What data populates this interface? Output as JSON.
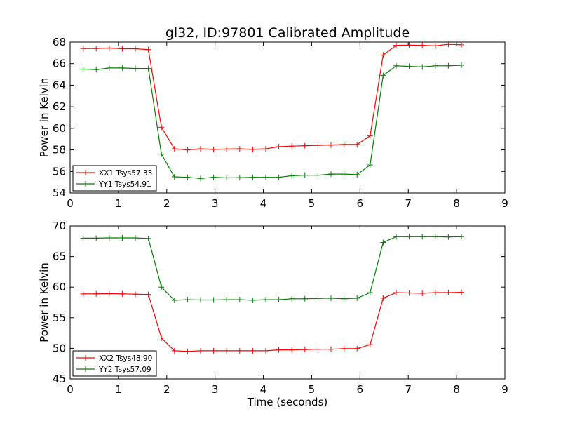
{
  "figure": {
    "title": "gl32, ID:97801 Calibrated Amplitude",
    "xlabel": "Time (seconds)"
  },
  "chart_data": [
    {
      "type": "line",
      "title": "gl32, ID:97801 Calibrated Amplitude",
      "xlabel": "",
      "ylabel": "Power in Kelvin",
      "xlim": [
        0,
        9
      ],
      "ylim": [
        54,
        68
      ],
      "xticks": [
        0,
        1,
        2,
        3,
        4,
        5,
        6,
        7,
        8,
        9
      ],
      "yticks": [
        54,
        56,
        58,
        60,
        62,
        64,
        66,
        68
      ],
      "grid": false,
      "legend_position": "lower-left",
      "series": [
        {
          "name": "XX1 Tsys57.33",
          "color": "#ff0000",
          "x": [
            0.27,
            0.54,
            0.81,
            1.08,
            1.35,
            1.62,
            1.89,
            2.16,
            2.43,
            2.7,
            2.97,
            3.24,
            3.51,
            3.78,
            4.05,
            4.32,
            4.59,
            4.86,
            5.13,
            5.4,
            5.67,
            5.94,
            6.21,
            6.48,
            6.75,
            7.02,
            7.29,
            7.56,
            7.83,
            8.1
          ],
          "y": [
            67.4,
            67.4,
            67.45,
            67.38,
            67.38,
            67.3,
            60.1,
            58.1,
            58.0,
            58.1,
            58.05,
            58.08,
            58.1,
            58.05,
            58.1,
            58.3,
            58.35,
            58.38,
            58.42,
            58.45,
            58.5,
            58.5,
            59.3,
            66.8,
            67.7,
            67.72,
            67.7,
            67.65,
            67.8,
            67.75
          ]
        },
        {
          "name": "YY1 Tsys54.91",
          "color": "#008000",
          "x": [
            0.27,
            0.54,
            0.81,
            1.08,
            1.35,
            1.62,
            1.89,
            2.16,
            2.43,
            2.7,
            2.97,
            3.24,
            3.51,
            3.78,
            4.05,
            4.32,
            4.59,
            4.86,
            5.13,
            5.4,
            5.67,
            5.94,
            6.21,
            6.48,
            6.75,
            7.02,
            7.29,
            7.56,
            7.83,
            8.1
          ],
          "y": [
            65.5,
            65.45,
            65.6,
            65.6,
            65.55,
            65.55,
            57.6,
            55.5,
            55.45,
            55.35,
            55.45,
            55.4,
            55.42,
            55.45,
            55.45,
            55.45,
            55.6,
            55.65,
            55.65,
            55.75,
            55.75,
            55.7,
            56.6,
            64.9,
            65.8,
            65.75,
            65.7,
            65.8,
            65.8,
            65.85
          ]
        }
      ]
    },
    {
      "type": "line",
      "title": "",
      "xlabel": "Time (seconds)",
      "ylabel": "Power in Kelvin",
      "xlim": [
        0,
        9
      ],
      "ylim": [
        45,
        70
      ],
      "xticks": [
        0,
        1,
        2,
        3,
        4,
        5,
        6,
        7,
        8,
        9
      ],
      "yticks": [
        45,
        50,
        55,
        60,
        65,
        70
      ],
      "grid": false,
      "legend_position": "lower-left",
      "series": [
        {
          "name": "XX2 Tsys48.90",
          "color": "#ff0000",
          "x": [
            0.27,
            0.54,
            0.81,
            1.08,
            1.35,
            1.62,
            1.89,
            2.16,
            2.43,
            2.7,
            2.97,
            3.24,
            3.51,
            3.78,
            4.05,
            4.32,
            4.59,
            4.86,
            5.13,
            5.4,
            5.67,
            5.94,
            6.21,
            6.48,
            6.75,
            7.02,
            7.29,
            7.56,
            7.83,
            8.1
          ],
          "y": [
            58.9,
            58.9,
            58.95,
            58.9,
            58.85,
            58.8,
            51.7,
            49.6,
            49.5,
            49.6,
            49.6,
            49.6,
            49.6,
            49.6,
            49.6,
            49.75,
            49.75,
            49.8,
            49.85,
            49.85,
            49.95,
            49.95,
            50.6,
            58.2,
            59.1,
            59.05,
            59.0,
            59.1,
            59.1,
            59.15
          ]
        },
        {
          "name": "YY2 Tsys57.09",
          "color": "#008000",
          "x": [
            0.27,
            0.54,
            0.81,
            1.08,
            1.35,
            1.62,
            1.89,
            2.16,
            2.43,
            2.7,
            2.97,
            3.24,
            3.51,
            3.78,
            4.05,
            4.32,
            4.59,
            4.86,
            5.13,
            5.4,
            5.67,
            5.94,
            6.21,
            6.48,
            6.75,
            7.02,
            7.29,
            7.56,
            7.83,
            8.1
          ],
          "y": [
            68.0,
            68.0,
            68.05,
            68.05,
            68.05,
            67.95,
            60.0,
            57.85,
            57.95,
            57.9,
            57.9,
            57.95,
            57.95,
            57.85,
            57.95,
            57.95,
            58.1,
            58.1,
            58.15,
            58.2,
            58.1,
            58.2,
            59.1,
            67.3,
            68.25,
            68.25,
            68.25,
            68.25,
            68.2,
            68.25
          ]
        }
      ]
    }
  ]
}
